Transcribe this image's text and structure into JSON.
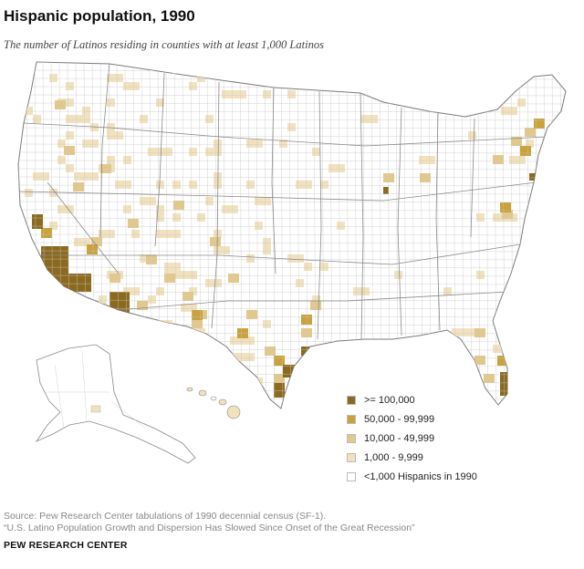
{
  "title": "Hispanic population, 1990",
  "subtitle": "The number of Latinos residing in counties with at least 1,000 Latinos",
  "legend": [
    {
      "label": ">= 100,000",
      "color": "#8b6a1f"
    },
    {
      "label": "50,000 - 99,999",
      "color": "#c9a23a"
    },
    {
      "label": "10,000 - 49,999",
      "color": "#e2c88a"
    },
    {
      "label": "1,000 - 9,999",
      "color": "#f1e2bd"
    },
    {
      "label": "<1,000 Hispanics in 1990",
      "color": "#ffffff"
    }
  ],
  "colors": {
    "tier1": "#8b6a1f",
    "tier2": "#c9a23a",
    "tier3": "#e2c88a",
    "tier4": "#f1e2bd",
    "none": "#ffffff",
    "border": "#9a9a9a"
  },
  "source_line1": "Source: Pew Research Center tabulations of 1990 decennial census (SF-1).",
  "source_line2": "“U.S. Latino Population Growth and Dispersion Has Slowed Since Onset of the Great Recession”",
  "credit": "PEW RESEARCH CENTER"
}
